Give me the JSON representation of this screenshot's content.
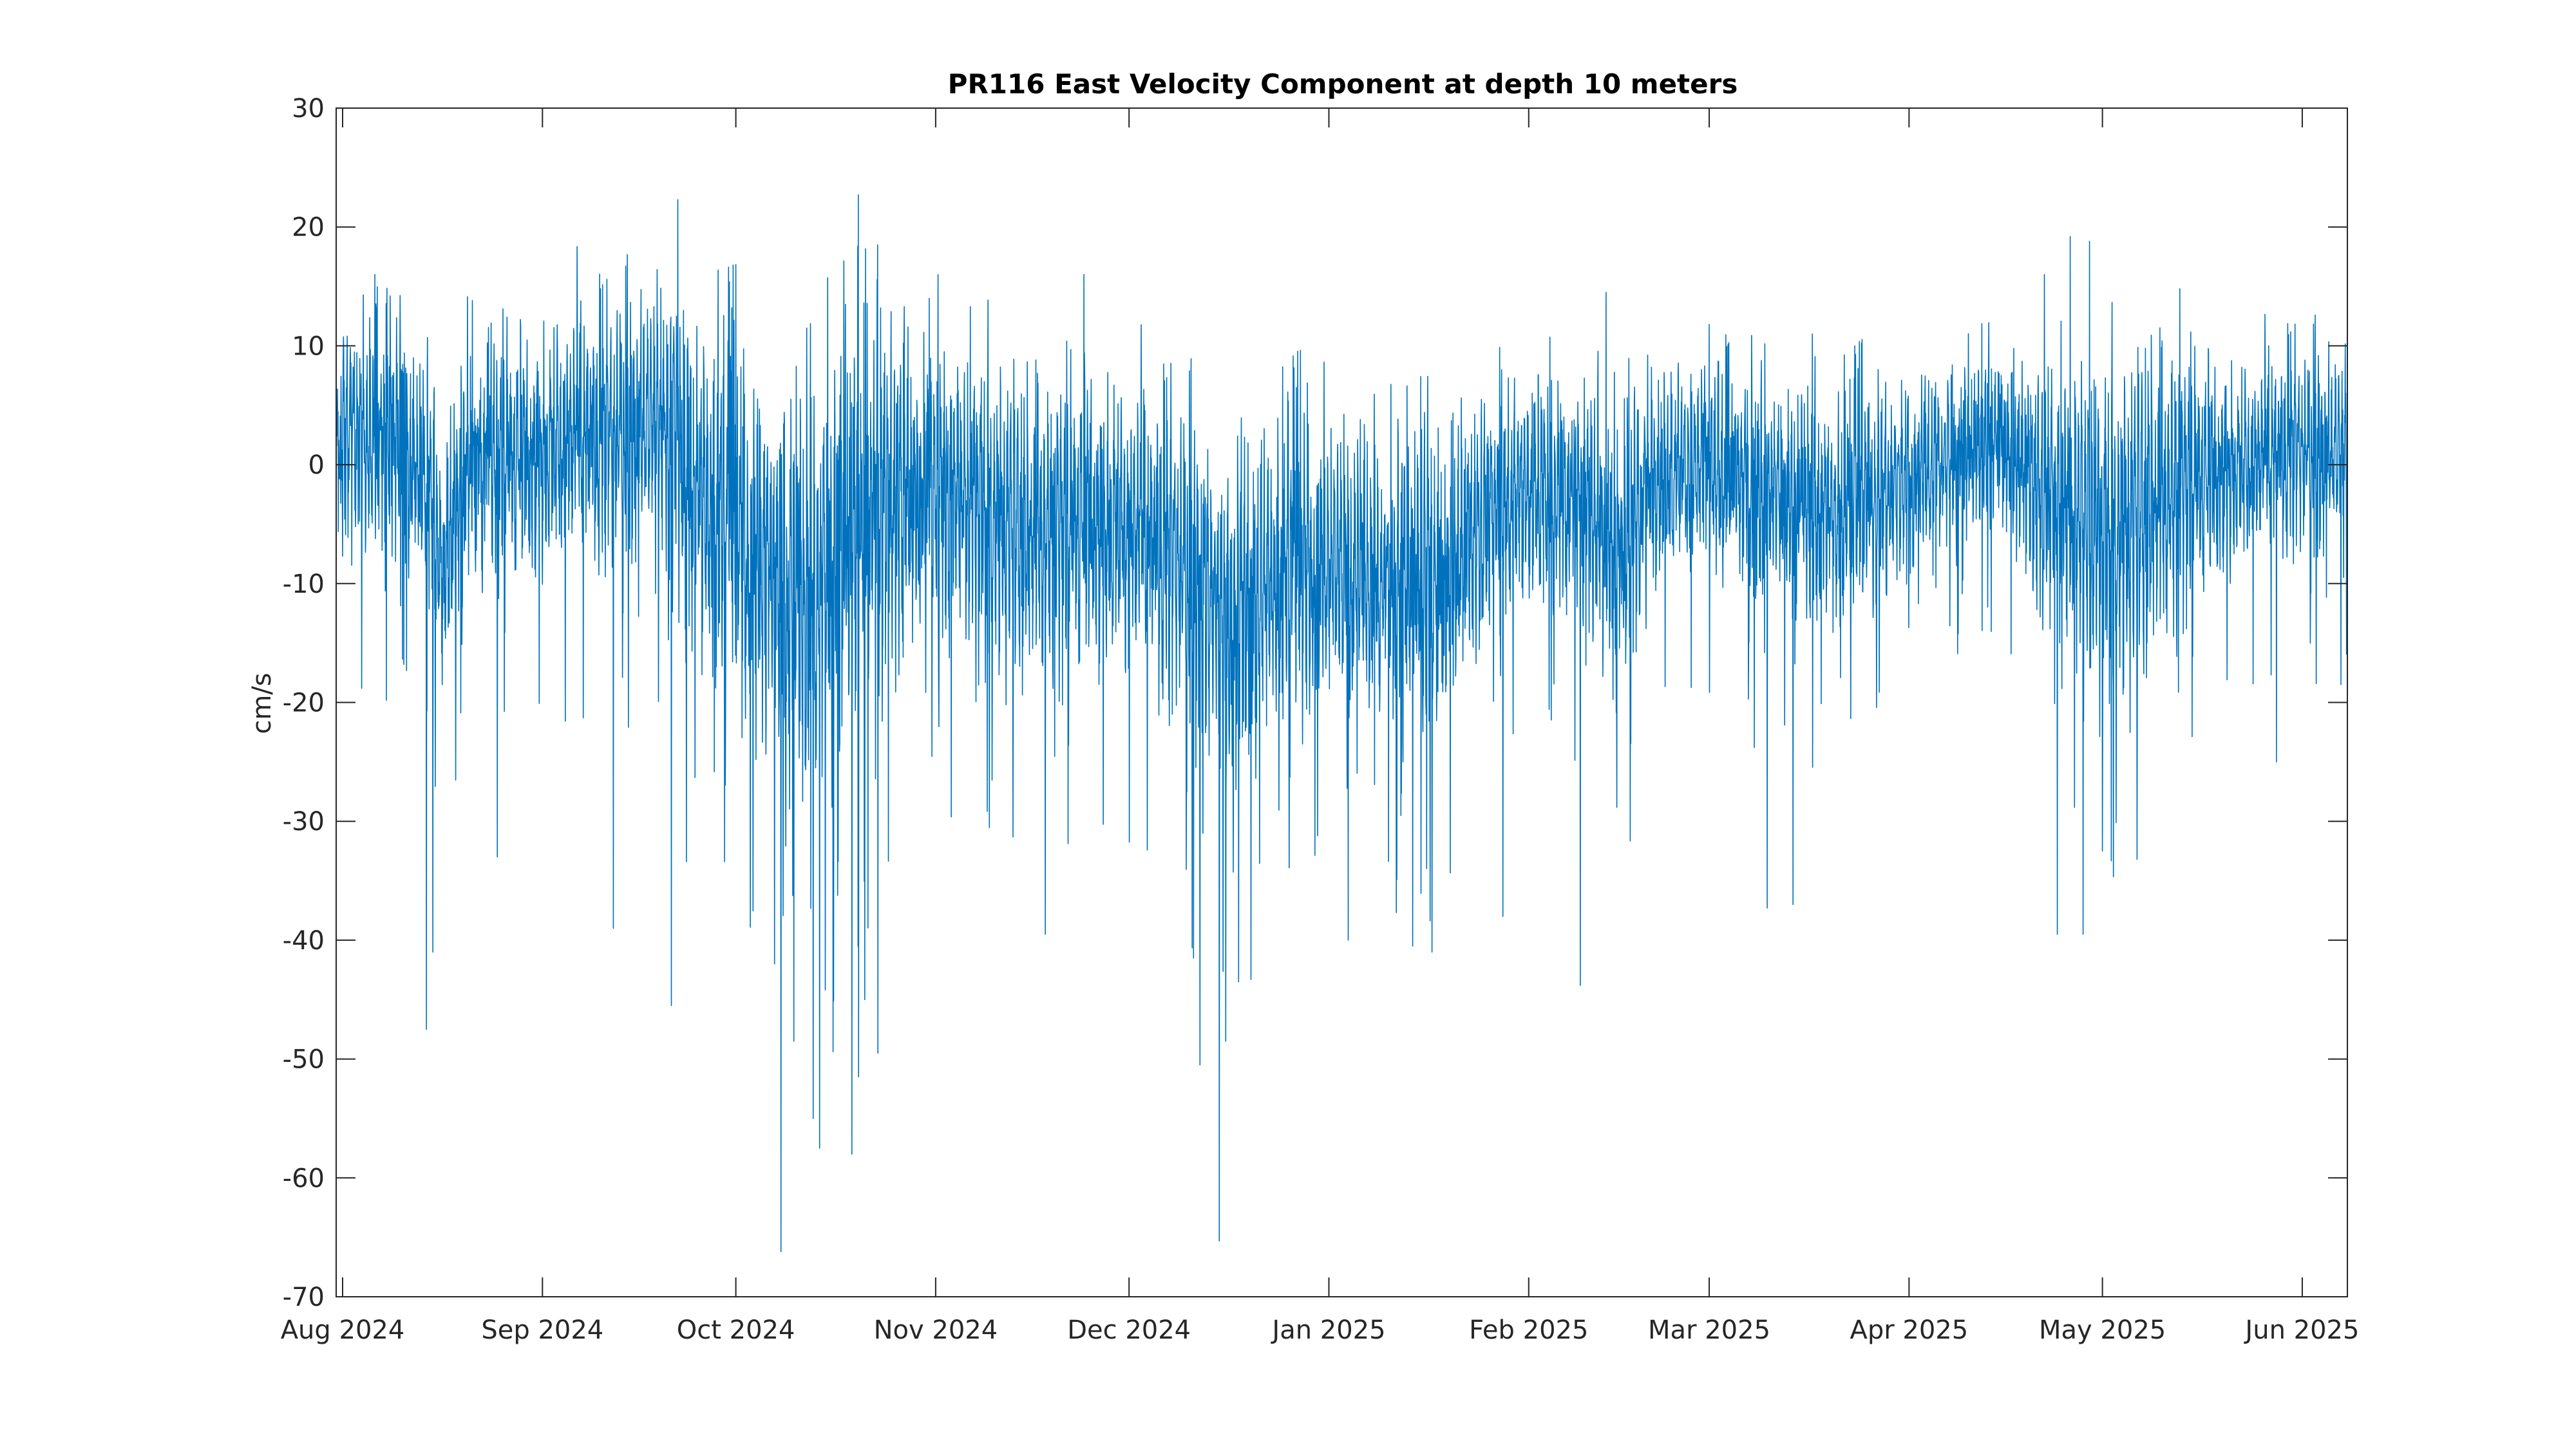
{
  "chart_data": {
    "type": "line",
    "title": "PR116 East Velocity Component at depth 10 meters",
    "ylabel": "cm/s",
    "xlabel": "",
    "ylim": [
      -70,
      30
    ],
    "yticks": [
      30,
      20,
      10,
      0,
      -10,
      -20,
      -30,
      -40,
      -50,
      -60,
      -70
    ],
    "xlim": [
      "2024-07-31",
      "2025-06-08"
    ],
    "xticks": [
      {
        "date": "2024-08-01",
        "label": "Aug 2024"
      },
      {
        "date": "2024-09-01",
        "label": "Sep 2024"
      },
      {
        "date": "2024-10-01",
        "label": "Oct 2024"
      },
      {
        "date": "2024-11-01",
        "label": "Nov 2024"
      },
      {
        "date": "2024-12-01",
        "label": "Dec 2024"
      },
      {
        "date": "2025-01-01",
        "label": "Jan 2025"
      },
      {
        "date": "2025-02-01",
        "label": "Feb 2025"
      },
      {
        "date": "2025-03-01",
        "label": "Mar 2025"
      },
      {
        "date": "2025-04-01",
        "label": "Apr 2025"
      },
      {
        "date": "2025-05-01",
        "label": "May 2025"
      },
      {
        "date": "2025-06-01",
        "label": "Jun 2025"
      }
    ],
    "grid": false,
    "line_color": "#0072BD",
    "series": [
      {
        "x": [
          "2024-07-31",
          "2024-08-05",
          "2024-08-10",
          "2024-08-15",
          "2024-08-16",
          "2024-08-20",
          "2024-08-25",
          "2024-08-30",
          "2024-09-05",
          "2024-09-10",
          "2024-09-15",
          "2024-09-20",
          "2024-09-23",
          "2024-09-25",
          "2024-09-30",
          "2024-10-05",
          "2024-10-08",
          "2024-10-12",
          "2024-10-16",
          "2024-10-19",
          "2024-10-22",
          "2024-10-25",
          "2024-10-30",
          "2024-11-05",
          "2024-11-10",
          "2024-11-15",
          "2024-11-20",
          "2024-11-25",
          "2024-11-30",
          "2024-12-05",
          "2024-12-10",
          "2024-12-14",
          "2024-12-16",
          "2024-12-18",
          "2024-12-22",
          "2024-12-27",
          "2025-01-01",
          "2025-01-05",
          "2025-01-10",
          "2025-01-15",
          "2025-01-18",
          "2025-01-20",
          "2025-01-25",
          "2025-01-30",
          "2025-02-05",
          "2025-02-09",
          "2025-02-12",
          "2025-02-15",
          "2025-02-20",
          "2025-02-25",
          "2025-03-01",
          "2025-03-05",
          "2025-03-10",
          "2025-03-15",
          "2025-03-20",
          "2025-03-25",
          "2025-03-30",
          "2025-04-05",
          "2025-04-10",
          "2025-04-15",
          "2025-04-20",
          "2025-04-25",
          "2025-04-28",
          "2025-05-01",
          "2025-05-05",
          "2025-05-10",
          "2025-05-15",
          "2025-05-20",
          "2025-05-25",
          "2025-05-30",
          "2025-06-03",
          "2025-06-07"
        ],
        "mean": [
          2,
          2,
          3,
          -3,
          -10,
          0,
          1,
          1,
          2,
          2,
          3,
          4,
          0,
          -2,
          -5,
          -8,
          -10,
          -12,
          -8,
          -6,
          -4,
          -3,
          -2,
          -3,
          -4,
          -6,
          -5,
          -4,
          -5,
          -7,
          -9,
          -12,
          -14,
          -13,
          -10,
          -9,
          -8,
          -9,
          -10,
          -10,
          -11,
          -9,
          -4,
          -3,
          -2,
          -3,
          -5,
          -8,
          -1,
          0,
          -1,
          -1,
          -2,
          -3,
          -4,
          -3,
          -2,
          0,
          1,
          2,
          -1,
          -3,
          -5,
          -6,
          -5,
          -3,
          -1,
          0,
          0,
          1,
          1,
          1
        ],
        "spread": [
          8,
          9,
          8,
          7,
          9,
          8,
          8,
          8,
          9,
          9,
          9,
          10,
          12,
          12,
          13,
          14,
          15,
          15,
          15,
          14,
          13,
          12,
          11,
          11,
          11,
          10,
          10,
          10,
          10,
          10,
          11,
          12,
          12,
          12,
          11,
          11,
          10,
          10,
          10,
          10,
          11,
          10,
          8,
          8,
          8,
          9,
          10,
          11,
          7,
          7,
          7,
          8,
          8,
          8,
          8,
          8,
          7,
          6,
          6,
          6,
          8,
          9,
          11,
          12,
          12,
          10,
          8,
          7,
          7,
          7,
          7,
          7
        ],
        "peaks": [
          {
            "x": "2024-08-14",
            "y": -47.5
          },
          {
            "x": "2024-08-15",
            "y": -41
          },
          {
            "x": "2024-08-06",
            "y": 16
          },
          {
            "x": "2024-08-25",
            "y": -33
          },
          {
            "x": "2024-09-12",
            "y": -39
          },
          {
            "x": "2024-09-21",
            "y": -45.5
          },
          {
            "x": "2024-09-22",
            "y": 22.3
          },
          {
            "x": "2024-10-07",
            "y": -42
          },
          {
            "x": "2024-10-08",
            "y": -66.2
          },
          {
            "x": "2024-10-10",
            "y": -48.5
          },
          {
            "x": "2024-10-12",
            "y": 11.5
          },
          {
            "x": "2024-10-13",
            "y": -55
          },
          {
            "x": "2024-10-14",
            "y": -57.5
          },
          {
            "x": "2024-10-18",
            "y": 13.5
          },
          {
            "x": "2024-10-19",
            "y": -58
          },
          {
            "x": "2024-10-20",
            "y": 22.7
          },
          {
            "x": "2024-10-20",
            "y": -51.5
          },
          {
            "x": "2024-10-21",
            "y": -45
          },
          {
            "x": "2024-10-23",
            "y": 18.5
          },
          {
            "x": "2024-10-23",
            "y": -49.5
          },
          {
            "x": "2024-10-31",
            "y": 14
          },
          {
            "x": "2024-11-18",
            "y": -39.5
          },
          {
            "x": "2024-11-24",
            "y": 16
          },
          {
            "x": "2024-12-11",
            "y": -41.5
          },
          {
            "x": "2024-12-12",
            "y": -50.5
          },
          {
            "x": "2024-12-15",
            "y": -65.3
          },
          {
            "x": "2024-12-16",
            "y": -48.5
          },
          {
            "x": "2024-12-18",
            "y": -43.5
          },
          {
            "x": "2025-01-04",
            "y": -40
          },
          {
            "x": "2025-01-14",
            "y": -40.5
          },
          {
            "x": "2025-01-17",
            "y": -41
          },
          {
            "x": "2025-01-28",
            "y": -38
          },
          {
            "x": "2025-02-09",
            "y": -43.8
          },
          {
            "x": "2025-02-13",
            "y": 14.5
          },
          {
            "x": "2025-03-01",
            "y": 11.8
          },
          {
            "x": "2025-03-10",
            "y": -37.3
          },
          {
            "x": "2025-03-14",
            "y": -37
          },
          {
            "x": "2025-03-17",
            "y": 11
          },
          {
            "x": "2025-04-22",
            "y": 16
          },
          {
            "x": "2025-04-24",
            "y": -39.5
          },
          {
            "x": "2025-04-26",
            "y": 19.2
          },
          {
            "x": "2025-04-28",
            "y": -39.5
          },
          {
            "x": "2025-04-29",
            "y": 18.8
          },
          {
            "x": "2025-05-01",
            "y": -32.5
          },
          {
            "x": "2025-05-13",
            "y": 14.8
          },
          {
            "x": "2025-05-28",
            "y": -25
          },
          {
            "x": "2025-06-07",
            "y": -18.5
          }
        ]
      }
    ]
  }
}
